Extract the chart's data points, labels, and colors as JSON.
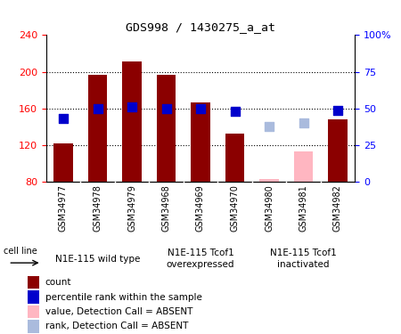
{
  "title": "GDS998 / 1430275_a_at",
  "samples": [
    "GSM34977",
    "GSM34978",
    "GSM34979",
    "GSM34968",
    "GSM34969",
    "GSM34970",
    "GSM34980",
    "GSM34981",
    "GSM34982"
  ],
  "bar_values": [
    122,
    197,
    211,
    197,
    167,
    133,
    null,
    null,
    148
  ],
  "bar_absent_values": [
    null,
    null,
    null,
    null,
    null,
    null,
    83,
    113,
    null
  ],
  "rank_values": [
    43,
    50,
    51,
    50,
    50,
    48,
    null,
    null,
    49
  ],
  "rank_absent_values": [
    null,
    null,
    null,
    null,
    null,
    null,
    38,
    40,
    null
  ],
  "bar_color": "#8B0000",
  "bar_absent_color": "#FFB6C1",
  "rank_color": "#0000CC",
  "rank_absent_color": "#AABBDD",
  "ylim_left": [
    80,
    240
  ],
  "ylim_right": [
    0,
    100
  ],
  "yticks_left": [
    80,
    120,
    160,
    200,
    240
  ],
  "yticks_right": [
    0,
    25,
    50,
    75,
    100
  ],
  "ytick_labels_right": [
    "0",
    "25",
    "50",
    "75",
    "100%"
  ],
  "groups": [
    {
      "label": "N1E-115 wild type",
      "start": 0,
      "end": 3
    },
    {
      "label": "N1E-115 Tcof1\noverexpressed",
      "start": 3,
      "end": 6
    },
    {
      "label": "N1E-115 Tcof1\ninactivated",
      "start": 6,
      "end": 9
    }
  ],
  "group_color": "#90EE90",
  "cell_line_label": "cell line",
  "legend_items": [
    {
      "label": "count",
      "color": "#8B0000"
    },
    {
      "label": "percentile rank within the sample",
      "color": "#0000CC"
    },
    {
      "label": "value, Detection Call = ABSENT",
      "color": "#FFB6C1"
    },
    {
      "label": "rank, Detection Call = ABSENT",
      "color": "#AABBDD"
    }
  ],
  "bar_width": 0.55,
  "plot_bg_color": "#FFFFFF",
  "rank_marker_size": 45,
  "label_bg_color": "#D3D3D3"
}
